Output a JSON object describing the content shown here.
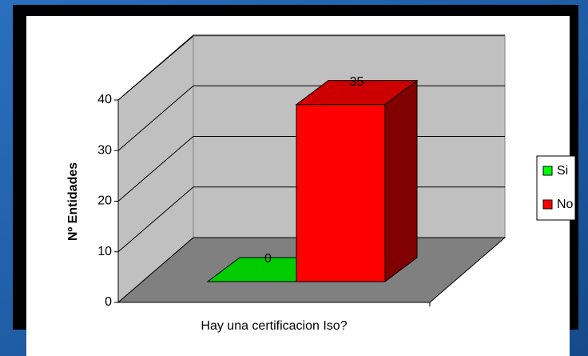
{
  "chart_data": {
    "type": "bar3d",
    "y_label": "Nº Entidades",
    "categories": [
      "Hay una certificacion Iso?"
    ],
    "series": [
      {
        "name": "Si",
        "color": "#00ff00",
        "values": [
          0
        ]
      },
      {
        "name": "No",
        "color": "#ff0000",
        "values": [
          35
        ]
      }
    ],
    "ylim": [
      0,
      40
    ],
    "yticks": [
      0,
      10,
      20,
      30,
      40
    ],
    "grid": true,
    "legend": "right"
  }
}
